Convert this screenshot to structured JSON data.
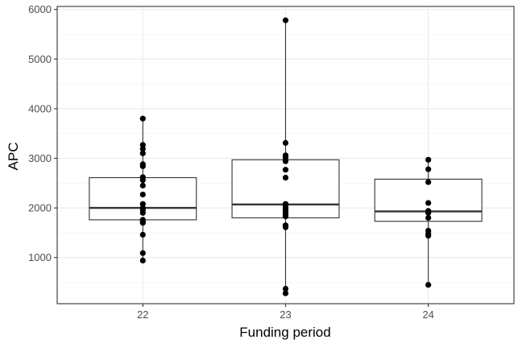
{
  "chart_data": {
    "type": "box",
    "title": "",
    "xlabel": "Funding period",
    "ylabel": "APC",
    "ylim": [
      70,
      6060
    ],
    "y_ticks": [
      1000,
      2000,
      3000,
      4000,
      5000,
      6000
    ],
    "y_tick_labels": [
      "1000",
      "2000",
      "3000",
      "4000",
      "5000",
      "6000"
    ],
    "grid": true,
    "legend": "none",
    "categories": [
      "22",
      "23",
      "24"
    ],
    "boxes": [
      {
        "category": "22",
        "lower_whisker": 940,
        "q1": 1760,
        "median": 2000,
        "q3": 2610,
        "upper_whisker": 3800
      },
      {
        "category": "23",
        "lower_whisker": 280,
        "q1": 1800,
        "median": 2070,
        "q3": 2970,
        "upper_whisker": 5780
      },
      {
        "category": "24",
        "lower_whisker": 450,
        "q1": 1730,
        "median": 1930,
        "q3": 2580,
        "upper_whisker": 2970
      }
    ],
    "points": [
      {
        "category": "22",
        "values": [
          3800,
          3270,
          3190,
          3100,
          2880,
          2840,
          2620,
          2560,
          2450,
          2270,
          2080,
          2000,
          1960,
          1900,
          1760,
          1730,
          1700,
          1460,
          1090,
          940
        ]
      },
      {
        "category": "23",
        "values": [
          5780,
          3310,
          3060,
          3010,
          2940,
          2770,
          2610,
          2080,
          2050,
          2000,
          1950,
          1900,
          1860,
          1830,
          1650,
          1610,
          370,
          280
        ]
      },
      {
        "category": "24",
        "values": [
          2970,
          2780,
          2520,
          2100,
          1940,
          1920,
          1900,
          1800,
          1540,
          1480,
          1440,
          450
        ]
      }
    ]
  }
}
